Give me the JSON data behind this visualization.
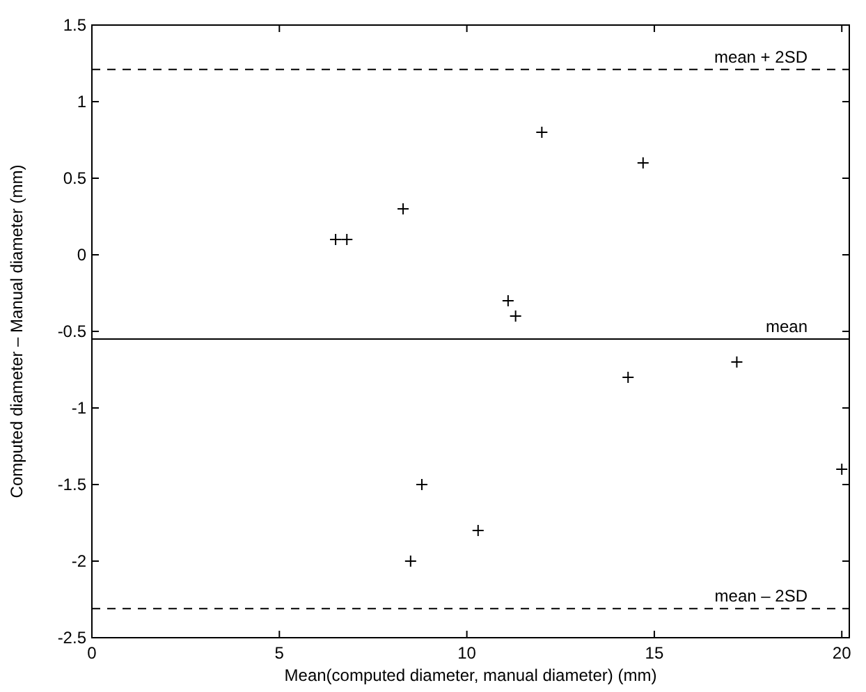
{
  "chart_data": {
    "type": "scatter",
    "xlabel": "Mean(computed diameter, manual diameter) (mm)",
    "ylabel": "Computed diameter – Manual diameter (mm)",
    "x": [
      6.5,
      6.8,
      8.3,
      11.1,
      11.3,
      12.0,
      14.7,
      14.3,
      17.2,
      20.0,
      8.8,
      8.5,
      10.3
    ],
    "series": [
      {
        "color": "#000000",
        "values": [
          0.1,
          0.1,
          0.3,
          -0.3,
          -0.4,
          0.8,
          0.6,
          -0.8,
          -0.7,
          -1.4,
          -1.5,
          -2.0,
          -1.8
        ]
      }
    ],
    "marker": "cross",
    "xlim": [
      0,
      20.2
    ],
    "xticks": [
      0,
      5,
      10,
      15,
      20
    ],
    "ylim": [
      -2.5,
      1.5
    ],
    "yticks": [
      -2.5,
      -2,
      -1.5,
      -1,
      -0.5,
      0,
      0.5,
      1,
      1.5
    ],
    "grid": false,
    "ref_lines": [
      {
        "axis": "y",
        "value": 1.21,
        "label": "mean + 2SD",
        "line_style": "dashed",
        "color": "#000000"
      },
      {
        "axis": "y",
        "value": -0.55,
        "label": "mean",
        "line_style": "solid",
        "color": "#000000"
      },
      {
        "axis": "y",
        "value": -2.31,
        "label": "mean – 2SD",
        "line_style": "dashed",
        "color": "#000000"
      }
    ]
  }
}
